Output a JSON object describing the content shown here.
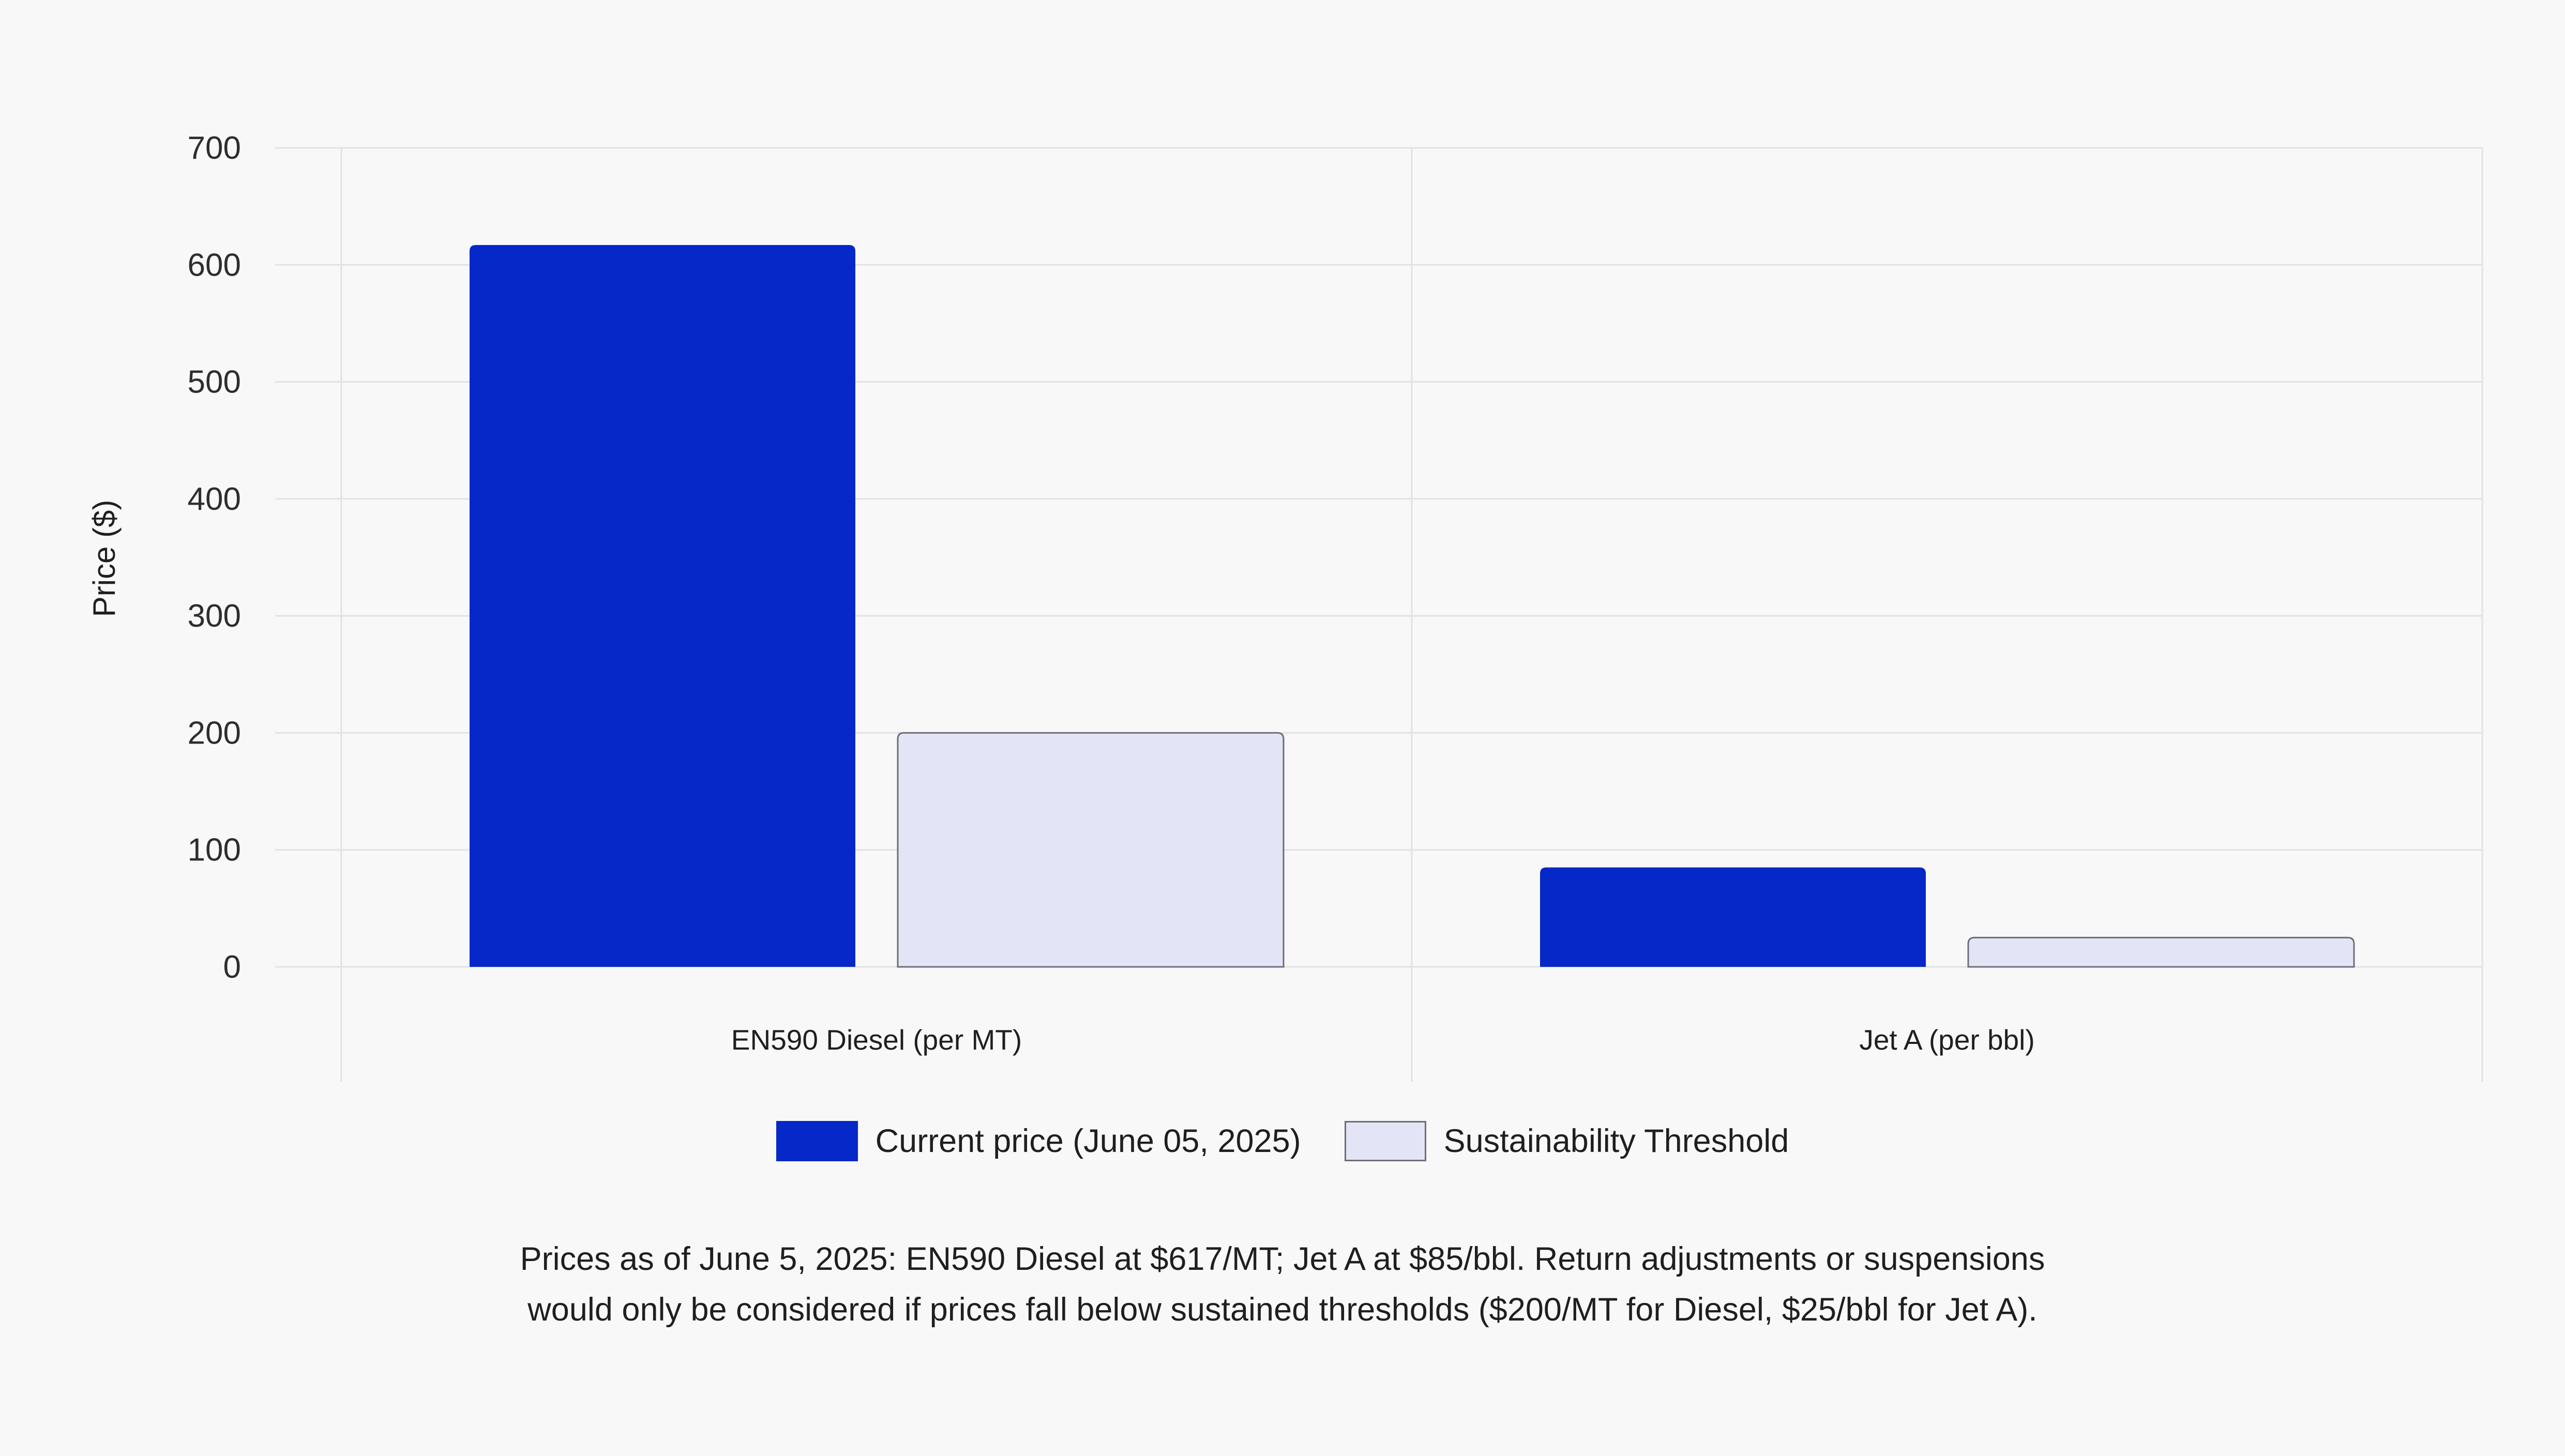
{
  "chart_data": {
    "type": "bar",
    "categories": [
      "EN590 Diesel (per MT)",
      "Jet A (per bbl)"
    ],
    "series": [
      {
        "name": "Current price (June 05, 2025)",
        "values": [
          617,
          85
        ],
        "color": "#0628c8"
      },
      {
        "name": "Sustainability Threshold",
        "values": [
          200,
          25
        ],
        "color": "#e3e5f6"
      }
    ],
    "ylabel": "Price ($)",
    "xlabel": "",
    "ylim": [
      0,
      700
    ],
    "yticks": [
      0,
      100,
      200,
      300,
      400,
      500,
      600,
      700
    ],
    "grid": true,
    "legend_position": "bottom"
  },
  "footnote": {
    "line1": "Prices as of June 5, 2025: EN590 Diesel at $617/MT; Jet A at $85/bbl. Return adjustments or suspensions",
    "line2": "would only be considered if prices fall below sustained thresholds ($200/MT for Diesel, $25/bbl for Jet A)."
  }
}
